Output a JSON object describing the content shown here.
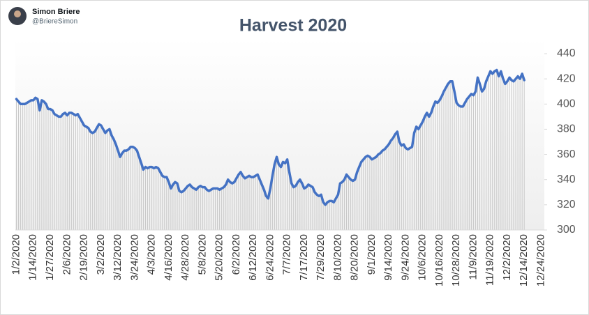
{
  "header": {
    "name": "Simon Briere",
    "handle": "@BriereSimon"
  },
  "chart_data": {
    "type": "line",
    "title": "Harvest 2020",
    "categories": [
      "1/2/2020",
      null,
      null,
      null,
      null,
      null,
      null,
      null,
      "1/14/2020",
      null,
      null,
      null,
      null,
      null,
      null,
      null,
      "1/27/2020",
      null,
      null,
      null,
      null,
      null,
      null,
      null,
      "2/6/2020",
      null,
      null,
      null,
      null,
      null,
      null,
      null,
      "2/19/2020",
      null,
      null,
      null,
      null,
      null,
      null,
      null,
      "3/2/2020",
      null,
      null,
      null,
      null,
      null,
      null,
      null,
      "3/12/2020",
      null,
      null,
      null,
      null,
      null,
      null,
      null,
      "3/24/2020",
      null,
      null,
      null,
      null,
      null,
      null,
      null,
      "4/3/2020",
      null,
      null,
      null,
      null,
      null,
      null,
      null,
      "4/16/2020",
      null,
      null,
      null,
      null,
      null,
      null,
      null,
      "4/28/2020",
      null,
      null,
      null,
      null,
      null,
      null,
      null,
      "5/8/2020",
      null,
      null,
      null,
      null,
      null,
      null,
      null,
      "5/20/2020",
      null,
      null,
      null,
      null,
      null,
      null,
      null,
      "6/2/2020",
      null,
      null,
      null,
      null,
      null,
      null,
      null,
      "6/12/2020",
      null,
      null,
      null,
      null,
      null,
      null,
      null,
      "6/24/2020",
      null,
      null,
      null,
      null,
      null,
      null,
      null,
      "7/7/2020",
      null,
      null,
      null,
      null,
      null,
      null,
      null,
      "7/17/2020",
      null,
      null,
      null,
      null,
      null,
      null,
      null,
      "7/29/2020",
      null,
      null,
      null,
      null,
      null,
      null,
      null,
      "8/10/2020",
      null,
      null,
      null,
      null,
      null,
      null,
      null,
      "8/20/2020",
      null,
      null,
      null,
      null,
      null,
      null,
      null,
      "9/1/2020",
      null,
      null,
      null,
      null,
      null,
      null,
      null,
      "9/14/2020",
      null,
      null,
      null,
      null,
      null,
      null,
      null,
      "9/24/2020",
      null,
      null,
      null,
      null,
      null,
      null,
      null,
      "10/6/2020",
      null,
      null,
      null,
      null,
      null,
      null,
      null,
      "10/16/2020",
      null,
      null,
      null,
      null,
      null,
      null,
      null,
      "10/28/2020",
      null,
      null,
      null,
      null,
      null,
      null,
      null,
      "11/9/2020",
      null,
      null,
      null,
      null,
      null,
      null,
      null,
      "11/19/2020",
      null,
      null,
      null,
      null,
      null,
      null,
      null,
      "12/2/2020",
      null,
      null,
      null,
      null,
      null,
      null,
      null,
      "12/14/2020",
      null,
      null,
      null,
      null,
      null,
      null,
      null,
      "12/24/2020",
      null
    ],
    "values": [
      404,
      402,
      400,
      400,
      400,
      401,
      402,
      403,
      403,
      405,
      404,
      395,
      403,
      402,
      400,
      396,
      396,
      395,
      392,
      391,
      390,
      390,
      392,
      393,
      391,
      393,
      393,
      392,
      391,
      392,
      389,
      386,
      383,
      382,
      381,
      378,
      377,
      378,
      381,
      384,
      383,
      380,
      377,
      379,
      380,
      375,
      372,
      368,
      363,
      358,
      361,
      363,
      363,
      364,
      366,
      366,
      365,
      363,
      358,
      353,
      348,
      350,
      349,
      350,
      350,
      349,
      350,
      349,
      346,
      343,
      342,
      342,
      338,
      333,
      336,
      338,
      337,
      331,
      330,
      331,
      333,
      335,
      336,
      334,
      333,
      332,
      334,
      335,
      334,
      334,
      332,
      331,
      332,
      333,
      333,
      333,
      332,
      333,
      334,
      336,
      340,
      338,
      337,
      338,
      341,
      344,
      346,
      343,
      341,
      342,
      343,
      342,
      342,
      343,
      344,
      340,
      336,
      332,
      327,
      325,
      333,
      343,
      352,
      358,
      352,
      350,
      354,
      353,
      356,
      346,
      337,
      334,
      335,
      338,
      340,
      337,
      333,
      334,
      336,
      335,
      334,
      330,
      328,
      327,
      328,
      322,
      320,
      322,
      323,
      323,
      322,
      325,
      328,
      337,
      338,
      340,
      344,
      342,
      340,
      339,
      340,
      346,
      350,
      354,
      356,
      358,
      359,
      358,
      356,
      357,
      358,
      360,
      361,
      363,
      364,
      366,
      368,
      371,
      373,
      376,
      378,
      370,
      367,
      368,
      365,
      364,
      365,
      366,
      377,
      382,
      380,
      383,
      386,
      390,
      393,
      390,
      393,
      398,
      402,
      401,
      403,
      406,
      410,
      413,
      416,
      418,
      418,
      410,
      401,
      399,
      398,
      398,
      401,
      404,
      406,
      408,
      407,
      410,
      421,
      416,
      410,
      412,
      418,
      422,
      426,
      424,
      426,
      427,
      422,
      426,
      420,
      416,
      418,
      421,
      419,
      418,
      420,
      422,
      420,
      424,
      419,
      null,
      null,
      null,
      null,
      null,
      null,
      null,
      null,
      null
    ],
    "color": "#4472c4",
    "drop_lines": true,
    "drop_line_color": "#c8c8c8",
    "ylim": [
      300,
      440
    ],
    "yticks": [
      300,
      320,
      340,
      360,
      380,
      400,
      420,
      440
    ],
    "y_axis_side": "right"
  }
}
